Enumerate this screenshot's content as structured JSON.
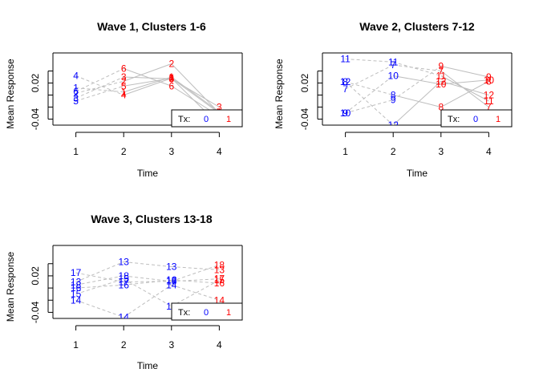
{
  "colors": {
    "tx0": "#0000ff",
    "tx1": "#ff0000",
    "line": "#bebebe",
    "axis": "#000000"
  },
  "chart_data": [
    {
      "type": "line",
      "title": "Wave 1, Clusters 1-6",
      "xlabel": "Time",
      "ylabel": "Mean Response",
      "x": [
        1,
        2,
        3,
        4
      ],
      "xlim": [
        0.52,
        4.48
      ],
      "ylim": [
        -0.05,
        0.07
      ],
      "xticks": [
        "1",
        "2",
        "3",
        "4"
      ],
      "yticks": [
        "-0.04",
        "0.02"
      ],
      "legend": {
        "title": "Tx:",
        "entries": [
          "0",
          "1"
        ],
        "position": "bottom-right"
      },
      "series": [
        {
          "name": "1",
          "values": [
            0.012,
            0.005,
            0.03,
            -0.028
          ]
        },
        {
          "name": "2",
          "values": [
            0.003,
            0.023,
            0.052,
            -0.03
          ]
        },
        {
          "name": "3",
          "values": [
            -0.005,
            0.03,
            0.027,
            -0.02
          ]
        },
        {
          "name": "4",
          "values": [
            0.032,
            0.0,
            0.028,
            -0.05
          ]
        },
        {
          "name": "5",
          "values": [
            -0.01,
            0.015,
            0.028,
            -0.03
          ]
        },
        {
          "name": "6",
          "values": [
            0.006,
            0.044,
            0.015,
            -0.035
          ]
        }
      ]
    },
    {
      "type": "line",
      "title": "Wave 2, Clusters 7-12",
      "xlabel": "Time",
      "ylabel": "Mean Response",
      "x": [
        1,
        2,
        3,
        4
      ],
      "xlim": [
        0.52,
        4.48
      ],
      "ylim": [
        -0.05,
        0.07
      ],
      "xticks": [
        "1",
        "2",
        "3",
        "4"
      ],
      "yticks": [
        "-0.04",
        "0.02"
      ],
      "legend": {
        "title": "Tx:",
        "entries": [
          "0",
          "1"
        ],
        "position": "bottom-right"
      },
      "series": [
        {
          "name": "7",
          "values": [
            0.01,
            0.05,
            0.04,
            -0.02
          ]
        },
        {
          "name": "8",
          "values": [
            0.022,
            0.0,
            -0.02,
            0.023
          ]
        },
        {
          "name": "9",
          "values": [
            -0.03,
            -0.008,
            0.048,
            0.03
          ]
        },
        {
          "name": "10",
          "values": [
            -0.03,
            0.032,
            0.018,
            0.025
          ]
        },
        {
          "name": "11",
          "values": [
            0.06,
            0.055,
            0.032,
            -0.01
          ]
        },
        {
          "name": "12",
          "values": [
            0.022,
            -0.05,
            0.023,
            0.0
          ]
        }
      ]
    },
    {
      "type": "line",
      "title": "Wave 3, Clusters 13-18",
      "xlabel": "Time",
      "ylabel": "Mean Response",
      "x": [
        1,
        2,
        3,
        4
      ],
      "xlim": [
        0.52,
        4.48
      ],
      "ylim": [
        -0.05,
        0.07
      ],
      "xticks": [
        "1",
        "2",
        "3",
        "4"
      ],
      "yticks": [
        "-0.04",
        "0.02"
      ],
      "legend": {
        "title": "Tx:",
        "entries": [
          "0",
          "1"
        ],
        "position": "bottom-right"
      },
      "series": [
        {
          "name": "13",
          "values": [
            0.01,
            0.043,
            0.035,
            0.03
          ]
        },
        {
          "name": "14",
          "values": [
            -0.02,
            -0.048,
            0.005,
            -0.02
          ]
        },
        {
          "name": "15",
          "values": [
            -0.01,
            0.015,
            -0.03,
            0.013
          ]
        },
        {
          "name": "16",
          "values": [
            0.0,
            0.005,
            0.013,
            0.008
          ]
        },
        {
          "name": "17",
          "values": [
            0.025,
            0.01,
            0.011,
            0.015
          ]
        },
        {
          "name": "18",
          "values": [
            0.005,
            0.02,
            0.011,
            0.038
          ]
        }
      ]
    }
  ]
}
